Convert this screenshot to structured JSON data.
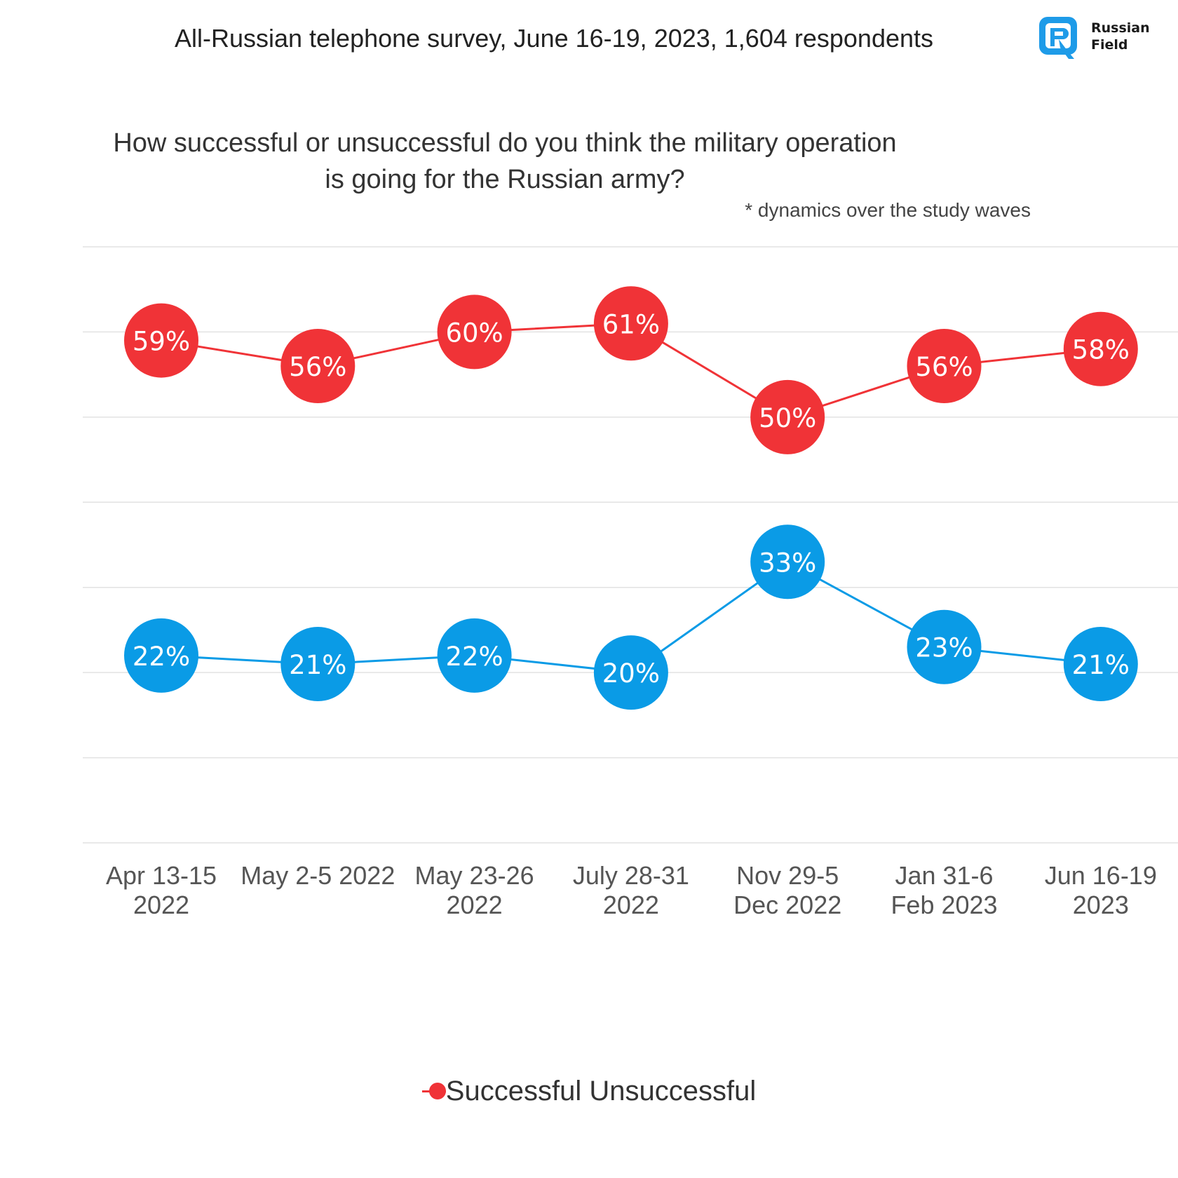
{
  "header": {
    "survey_title": "All-Russian telephone survey, June 16-19, 2023, 1,604 respondents",
    "logo_text": "Russian\nField",
    "logo_color": "#1E9BE8"
  },
  "chart_data": {
    "type": "line",
    "title": "How successful or unsuccessful do you think the military operation is going for the Russian army?",
    "subtitle": "* dynamics over the study waves",
    "categories": [
      [
        "Apr 13-15",
        "2022"
      ],
      [
        "May 2-5 2022",
        ""
      ],
      [
        "May 23-26",
        "2022"
      ],
      [
        "July 28-31",
        "2022"
      ],
      [
        "Nov 29-5",
        "Dec 2022"
      ],
      [
        "Jan 31-6",
        "Feb 2023"
      ],
      [
        "Jun 16-19",
        "2023"
      ]
    ],
    "ylim": [
      0,
      70
    ],
    "grid": true,
    "series": [
      {
        "name": "Successful",
        "color": "#F03337",
        "values": [
          59,
          56,
          60,
          61,
          50,
          56,
          58
        ],
        "labels": [
          "59%",
          "56%",
          "60%",
          "61%",
          "50%",
          "56%",
          "58%"
        ]
      },
      {
        "name": "Unsuccessful",
        "color": "#0A9BE6",
        "values": [
          22,
          21,
          22,
          20,
          33,
          23,
          21
        ],
        "labels": [
          "22%",
          "21%",
          "22%",
          "20%",
          "33%",
          "23%",
          "21%"
        ]
      }
    ],
    "legend": {
      "position": "bottom-center",
      "text": "Successful Unsuccessful"
    }
  }
}
